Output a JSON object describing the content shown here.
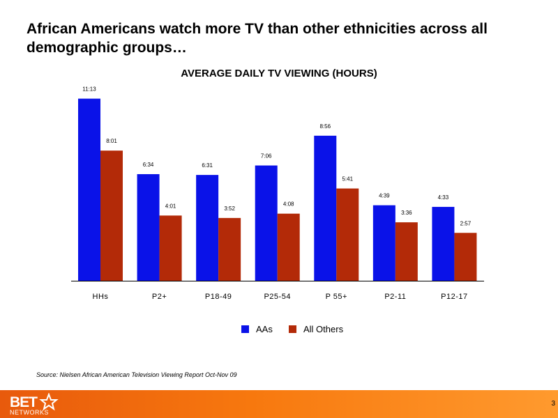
{
  "headline": "African Americans watch more TV than other ethnicities across all demographic groups…",
  "source": "Source:  Nielsen African American Television Viewing Report Oct-Nov 09",
  "footer": {
    "logo_text_top": "BET",
    "logo_text_bottom": "NETWORKS",
    "page_number": "3"
  },
  "colors": {
    "series_aas": "#0a12e8",
    "series_others": "#b32a08",
    "footer": "#f7780e"
  },
  "chart_data": {
    "type": "bar",
    "title": "AVERAGE DAILY TV VIEWING (HOURS)",
    "xlabel": "",
    "ylabel": "",
    "categories": [
      "HHs",
      "P2+",
      "P18-49",
      "P25-54",
      "P 55+",
      "P2-11",
      "P12-17"
    ],
    "series": [
      {
        "name": "AAs",
        "color": "#0a12e8",
        "values": [
          11.2167,
          6.5667,
          6.5167,
          7.1,
          8.9333,
          4.65,
          4.55
        ],
        "labels": [
          "11:13",
          "6:34",
          "6:31",
          "7:06",
          "8:56",
          "4:39",
          "4:33"
        ]
      },
      {
        "name": "All Others",
        "color": "#b32a08",
        "values": [
          8.0167,
          4.0167,
          3.8667,
          4.1333,
          5.6833,
          3.6,
          2.95
        ],
        "labels": [
          "8:01",
          "4:01",
          "3:52",
          "4:08",
          "5:41",
          "3:36",
          "2:57"
        ]
      }
    ],
    "ylim": [
      0,
      11.5
    ],
    "grid": false,
    "legend": "bottom"
  }
}
